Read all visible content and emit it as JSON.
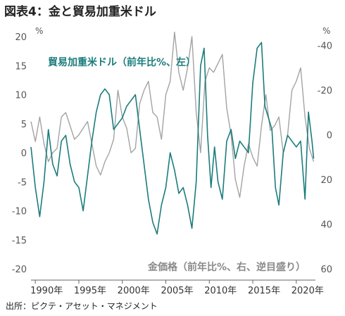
{
  "title": "図表4：金と貿易加重米ドル",
  "source": "出所：ピクテ・アセット・マネジメント",
  "chart_data": {
    "type": "line",
    "left_axis": {
      "unit": "%",
      "ticks": [
        20,
        15,
        10,
        5,
        0,
        -5,
        -10,
        -15,
        -20
      ],
      "range": [
        -20,
        20
      ]
    },
    "right_axis": {
      "unit": "%",
      "inverted": true,
      "ticks": [
        -40,
        -20,
        0,
        20,
        40,
        60
      ],
      "range": [
        60,
        -44
      ]
    },
    "x_axis": {
      "ticks": [
        "1990年",
        "1995年",
        "2000年",
        "2005年",
        "2010年",
        "2015年",
        "2020年"
      ],
      "range": [
        1989.5,
        2022.2
      ]
    },
    "series": [
      {
        "name": "貿易加重米ドル（前年比%、左）",
        "color": "#1c7c7c",
        "axis": "left",
        "points": [
          [
            1989.5,
            1
          ],
          [
            1990.0,
            -6
          ],
          [
            1990.5,
            -11
          ],
          [
            1991.0,
            -5
          ],
          [
            1991.5,
            4
          ],
          [
            1992.0,
            -2
          ],
          [
            1992.5,
            -4
          ],
          [
            1993.0,
            2
          ],
          [
            1993.5,
            3
          ],
          [
            1994.0,
            -2
          ],
          [
            1994.5,
            -5
          ],
          [
            1995.0,
            -6
          ],
          [
            1995.5,
            -10
          ],
          [
            1996.0,
            -4
          ],
          [
            1996.5,
            2
          ],
          [
            1997.0,
            7
          ],
          [
            1997.5,
            10
          ],
          [
            1998.0,
            11
          ],
          [
            1998.5,
            10
          ],
          [
            1999.0,
            4
          ],
          [
            1999.5,
            5
          ],
          [
            2000.0,
            6
          ],
          [
            2000.5,
            8
          ],
          [
            2001.0,
            9
          ],
          [
            2001.5,
            10
          ],
          [
            2002.0,
            4
          ],
          [
            2002.5,
            -2
          ],
          [
            2003.0,
            -8
          ],
          [
            2003.5,
            -12
          ],
          [
            2004.0,
            -14
          ],
          [
            2004.5,
            -9
          ],
          [
            2005.0,
            -6
          ],
          [
            2005.5,
            0
          ],
          [
            2006.0,
            -3
          ],
          [
            2006.5,
            -7
          ],
          [
            2007.0,
            -6
          ],
          [
            2007.5,
            -9
          ],
          [
            2008.0,
            -13
          ],
          [
            2008.5,
            -5
          ],
          [
            2009.0,
            15
          ],
          [
            2009.4,
            18
          ],
          [
            2009.8,
            3
          ],
          [
            2010.2,
            -6
          ],
          [
            2010.6,
            1
          ],
          [
            2011.0,
            -5
          ],
          [
            2011.5,
            -8
          ],
          [
            2012.0,
            2
          ],
          [
            2012.5,
            4
          ],
          [
            2013.0,
            -1
          ],
          [
            2013.5,
            2
          ],
          [
            2014.0,
            1
          ],
          [
            2014.5,
            0
          ],
          [
            2015.0,
            12
          ],
          [
            2015.5,
            18
          ],
          [
            2016.0,
            19
          ],
          [
            2016.4,
            8
          ],
          [
            2016.8,
            6
          ],
          [
            2017.2,
            4
          ],
          [
            2017.6,
            -6
          ],
          [
            2018.0,
            -9
          ],
          [
            2018.5,
            0
          ],
          [
            2019.0,
            3
          ],
          [
            2019.5,
            2
          ],
          [
            2020.0,
            1
          ],
          [
            2020.5,
            2
          ],
          [
            2021.0,
            -8
          ],
          [
            2021.4,
            7
          ],
          [
            2021.8,
            2
          ],
          [
            2022.0,
            -1
          ]
        ]
      },
      {
        "name": "金価格（前年比%、右、逆目盛り）",
        "color": "#a3a3a3",
        "axis": "right",
        "points": [
          [
            1989.5,
            -6
          ],
          [
            1990.0,
            3
          ],
          [
            1990.5,
            -8
          ],
          [
            1991.0,
            4
          ],
          [
            1991.5,
            12
          ],
          [
            1992.0,
            8
          ],
          [
            1992.5,
            6
          ],
          [
            1993.0,
            -8
          ],
          [
            1993.5,
            -10
          ],
          [
            1994.0,
            -4
          ],
          [
            1994.5,
            2
          ],
          [
            1995.0,
            0
          ],
          [
            1995.5,
            -3
          ],
          [
            1996.0,
            -6
          ],
          [
            1996.5,
            4
          ],
          [
            1997.0,
            14
          ],
          [
            1997.5,
            18
          ],
          [
            1998.0,
            12
          ],
          [
            1998.5,
            8
          ],
          [
            1999.0,
            2
          ],
          [
            1999.5,
            -20
          ],
          [
            2000.0,
            -8
          ],
          [
            2000.5,
            -3
          ],
          [
            2001.0,
            8
          ],
          [
            2001.5,
            6
          ],
          [
            2002.0,
            -14
          ],
          [
            2002.5,
            -20
          ],
          [
            2003.0,
            -24
          ],
          [
            2003.5,
            -10
          ],
          [
            2004.0,
            -8
          ],
          [
            2004.5,
            2
          ],
          [
            2005.0,
            -18
          ],
          [
            2005.5,
            -24
          ],
          [
            2006.0,
            -46
          ],
          [
            2006.5,
            -28
          ],
          [
            2007.0,
            -20
          ],
          [
            2007.5,
            -30
          ],
          [
            2008.0,
            -44
          ],
          [
            2008.5,
            -10
          ],
          [
            2009.0,
            8
          ],
          [
            2009.5,
            -24
          ],
          [
            2010.0,
            -30
          ],
          [
            2010.5,
            -28
          ],
          [
            2011.0,
            -32
          ],
          [
            2011.5,
            -36
          ],
          [
            2012.0,
            -12
          ],
          [
            2012.5,
            0
          ],
          [
            2013.0,
            20
          ],
          [
            2013.5,
            28
          ],
          [
            2014.0,
            14
          ],
          [
            2014.5,
            4
          ],
          [
            2015.0,
            10
          ],
          [
            2015.5,
            14
          ],
          [
            2016.0,
            -4
          ],
          [
            2016.5,
            -18
          ],
          [
            2017.0,
            -2
          ],
          [
            2017.5,
            -4
          ],
          [
            2018.0,
            -8
          ],
          [
            2018.5,
            8
          ],
          [
            2019.0,
            0
          ],
          [
            2019.5,
            -20
          ],
          [
            2020.0,
            -24
          ],
          [
            2020.5,
            -30
          ],
          [
            2021.0,
            -8
          ],
          [
            2021.5,
            6
          ],
          [
            2022.0,
            12
          ]
        ]
      }
    ],
    "annotations": [
      {
        "text": "貿易加重米ドル（前年比%、左）",
        "series": 0
      },
      {
        "text": "金価格（前年比%、右、逆目盛り）",
        "series": 1
      }
    ],
    "grid": false,
    "legend": "inline labels"
  }
}
